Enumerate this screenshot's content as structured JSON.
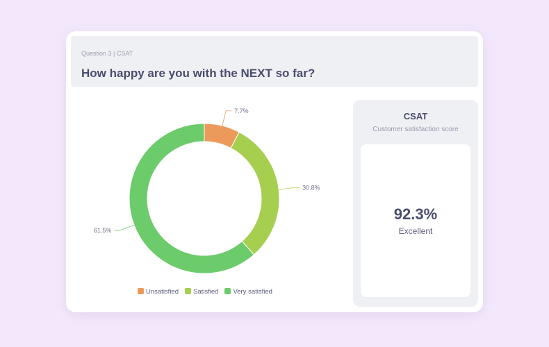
{
  "header": {
    "subtitle": "Question 3 | CSAT",
    "title": "How happy are you with the NEXT so far?"
  },
  "chart_data": {
    "type": "pie",
    "variant": "donut",
    "categories": [
      "Unsatisfied",
      "Satisfied",
      "Very satisfied"
    ],
    "values": [
      7.7,
      30.8,
      61.5
    ],
    "labels": [
      "7.7%",
      "30.8%",
      "61.5%"
    ],
    "colors": [
      "#ec9a5c",
      "#a6cf4f",
      "#6ccb6a"
    ],
    "legend": "bottom"
  },
  "panel": {
    "title": "CSAT",
    "subtitle": "Customer satisfaction score",
    "value": "92.3%",
    "rating": "Excellent"
  }
}
